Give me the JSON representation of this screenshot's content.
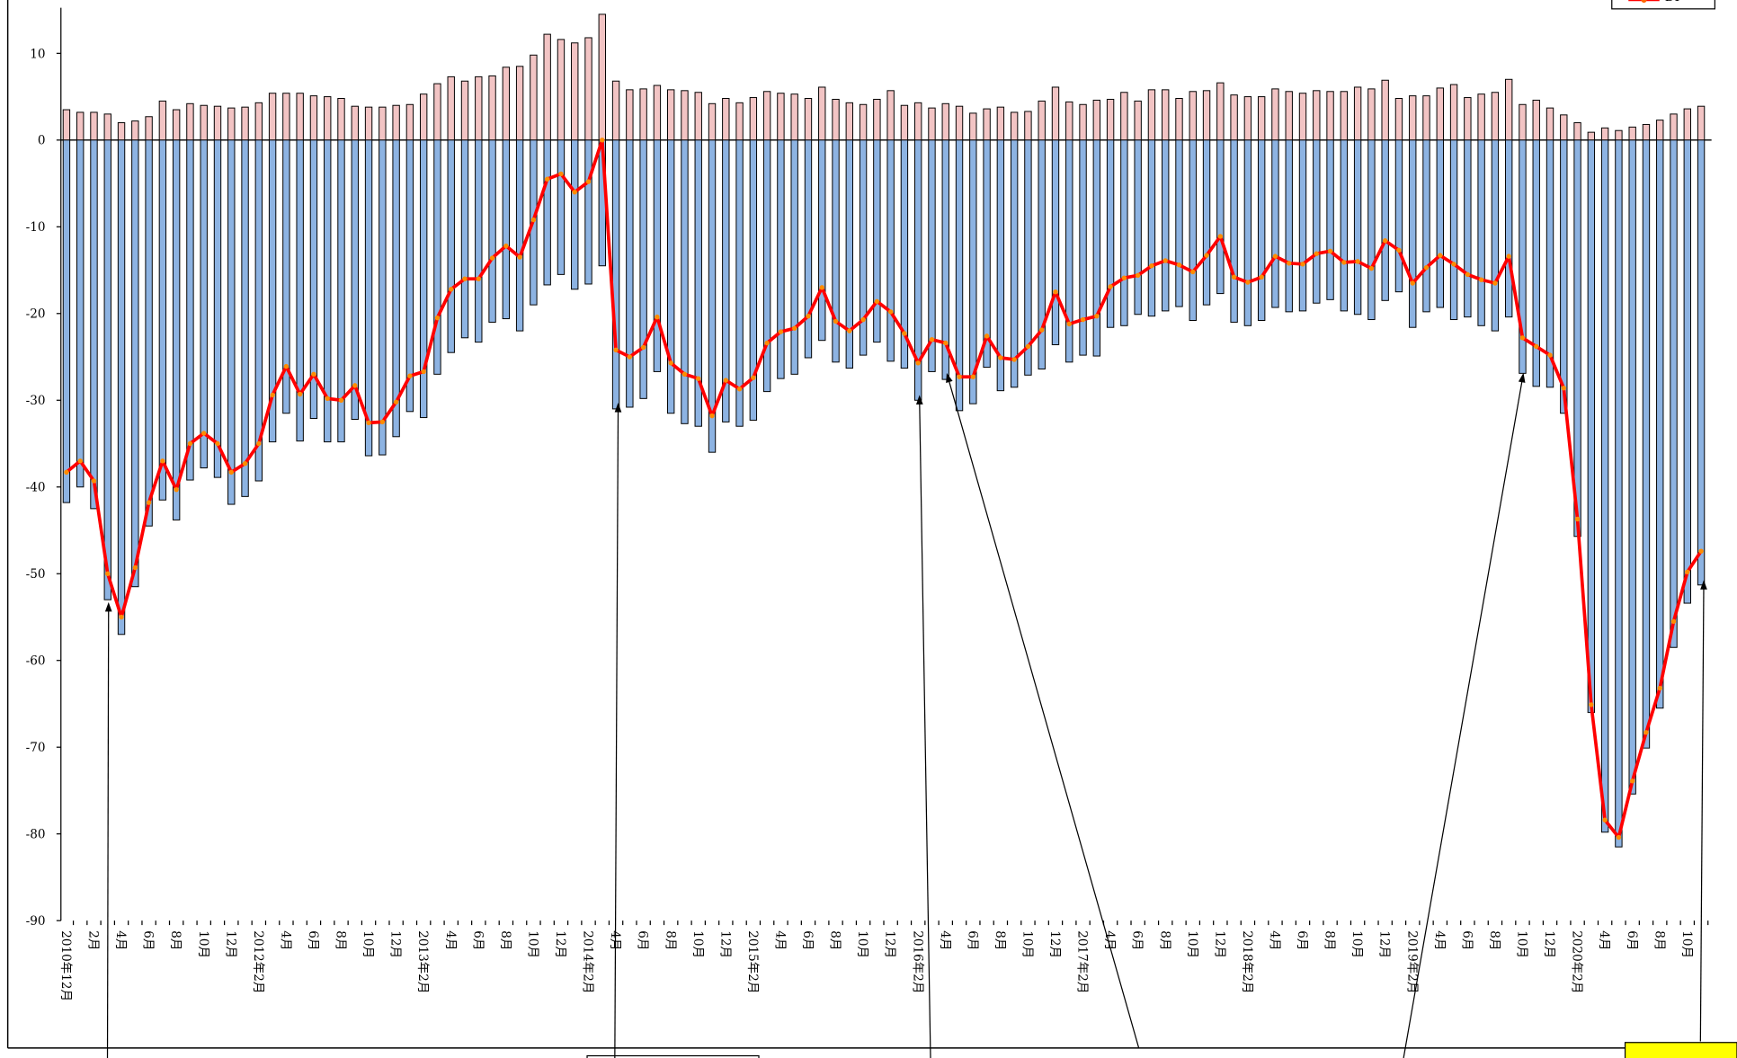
{
  "chart_data": {
    "type": "bar",
    "categories": [
      "2010年12月",
      null,
      "2月",
      null,
      "4月",
      null,
      "6月",
      null,
      "8月",
      null,
      "10月",
      null,
      "12月",
      null,
      "2012年2月",
      null,
      "4月",
      null,
      "6月",
      null,
      "8月",
      null,
      "10月",
      null,
      "12月",
      null,
      "2013年2月",
      null,
      "4月",
      null,
      "6月",
      null,
      "8月",
      null,
      "10月",
      null,
      "12月",
      null,
      "2014年2月",
      null,
      "4月",
      null,
      "6月",
      null,
      "8月",
      null,
      "10月",
      null,
      "12月",
      null,
      "2015年2月",
      null,
      "4月",
      null,
      "6月",
      null,
      "8月",
      null,
      "10月",
      null,
      "12月",
      null,
      "2016年2月",
      null,
      "4月",
      null,
      "6月",
      null,
      "8月",
      null,
      "10月",
      null,
      "12月",
      null,
      "2017年2月",
      null,
      "4月",
      null,
      "6月",
      null,
      "8月",
      null,
      "10月",
      null,
      "12月",
      null,
      "2018年2月",
      null,
      "4月",
      null,
      "6月",
      null,
      "8月",
      null,
      "10月",
      null,
      "12月",
      null,
      "2019年2月",
      null,
      "4月",
      null,
      "6月",
      null,
      "8月",
      null,
      "10月",
      null,
      "12月",
      null,
      "2020年2月",
      null,
      "4月",
      null,
      "6月",
      null,
      "8月",
      null,
      "10月",
      null
    ],
    "series": [
      {
        "type": "bar",
        "color": "#f2c4c4",
        "values": [
          3.5,
          3.2,
          3.2,
          3,
          2,
          2.2,
          2.7,
          4.5,
          3.5,
          4.2,
          4,
          3.9,
          3.7,
          3.8,
          4.3,
          5.4,
          5.4,
          5.4,
          5.1,
          5,
          4.8,
          3.9,
          3.8,
          3.8,
          4,
          4.1,
          5.3,
          6.5,
          7.3,
          6.8,
          7.3,
          7.4,
          8.4,
          8.5,
          9.8,
          12.2,
          11.6,
          11.2,
          11.8,
          14.5,
          6.8,
          5.8,
          5.9,
          6.3,
          5.8,
          5.7,
          5.5,
          4.2,
          4.8,
          4.3,
          4.9,
          5.6,
          5.4,
          5.3,
          4.8,
          6.1,
          4.7,
          4.3,
          4.1,
          4.7,
          5.7,
          4,
          4.3,
          3.7,
          4.2,
          3.9,
          3.1,
          3.6,
          3.8,
          3.2,
          3.3,
          4.5,
          6.1,
          4.4,
          4.1,
          4.6,
          4.7,
          5.5,
          4.5,
          5.8,
          5.8,
          4.8,
          5.6,
          5.7,
          6.6,
          5.2,
          5,
          5,
          5.9,
          5.6,
          5.4,
          5.7,
          5.6,
          5.6,
          6.1,
          5.9,
          6.9,
          4.8,
          5.1,
          5.1,
          6,
          6.4,
          4.9,
          5.3,
          5.5,
          7,
          4.1,
          4.6,
          3.7,
          2.9,
          2,
          0.9,
          1.4,
          1.1,
          1.5,
          1.8,
          2.3,
          3,
          3.6,
          3.9
        ]
      },
      {
        "type": "bar",
        "color": "#8db3e2",
        "values": [
          -41.8,
          -40,
          -42.5,
          -53,
          -57,
          -51.5,
          -44.5,
          -41.5,
          -43.8,
          -39.2,
          -37.8,
          -38.9,
          -42,
          -41.1,
          -39.3,
          -34.8,
          -31.5,
          -34.7,
          -32.1,
          -34.8,
          -34.8,
          -32.2,
          -36.4,
          -36.3,
          -34.2,
          -31.3,
          -32,
          -27,
          -24.5,
          -22.8,
          -23.3,
          -21,
          -20.6,
          -22,
          -19,
          -16.7,
          -15.5,
          -17.2,
          -16.6,
          -14.5,
          -31,
          -30.8,
          -29.8,
          -26.7,
          -31.5,
          -32.7,
          -33,
          -36,
          -32.5,
          -33,
          -32.3,
          -29,
          -27.5,
          -27,
          -25.1,
          -23.1,
          -25.6,
          -26.3,
          -24.8,
          -23.3,
          -25.5,
          -26.3,
          -30,
          -26.7,
          -27.6,
          -31.2,
          -30.4,
          -26.2,
          -28.9,
          -28.5,
          -27.1,
          -26.4,
          -23.6,
          -25.6,
          -24.8,
          -24.9,
          -21.6,
          -21.4,
          -20.1,
          -20.3,
          -19.7,
          -19.2,
          -20.8,
          -19,
          -17.7,
          -21,
          -21.4,
          -20.8,
          -19.3,
          -19.8,
          -19.7,
          -18.8,
          -18.4,
          -19.7,
          -20.1,
          -20.7,
          -18.5,
          -17.5,
          -21.6,
          -19.8,
          -19.3,
          -20.7,
          -20.4,
          -21.4,
          -22,
          -20.4,
          -26.9,
          -28.4,
          -28.5,
          -31.5,
          -45.7,
          -66,
          -79.8,
          -81.5,
          -75.4,
          -70.1,
          -65.5,
          -58.5,
          -53.4,
          -51.3
        ]
      },
      {
        "type": "line",
        "name": "DI",
        "color": "#ff0000",
        "values": [
          -38.3,
          -37,
          -39.3,
          -50,
          -55,
          -49.3,
          -41.8,
          -37,
          -40.3,
          -35,
          -33.8,
          -35,
          -38.3,
          -37.3,
          -35,
          -29.4,
          -26.1,
          -29.3,
          -27,
          -29.8,
          -30,
          -28.3,
          -32.6,
          -32.5,
          -30.2,
          -27.2,
          -26.7,
          -20.5,
          -17.2,
          -16,
          -16,
          -13.6,
          -12.2,
          -13.5,
          -9.2,
          -4.5,
          -3.9,
          -6,
          -4.8,
          0,
          -24.2,
          -25,
          -23.9,
          -20.4,
          -25.7,
          -27,
          -27.5,
          -31.8,
          -27.7,
          -28.7,
          -27.4,
          -23.4,
          -22.1,
          -21.7,
          -20.3,
          -17,
          -20.9,
          -22,
          -20.7,
          -18.6,
          -19.8,
          -22.3,
          -25.7,
          -23,
          -23.4,
          -27.3,
          -27.3,
          -22.6,
          -25.1,
          -25.3,
          -23.8,
          -21.9,
          -17.5,
          -21.2,
          -20.7,
          -20.3,
          -16.9,
          -15.9,
          -15.6,
          -14.5,
          -13.9,
          -14.4,
          -15.2,
          -13.3,
          -11.1,
          -15.8,
          -16.4,
          -15.8,
          -13.4,
          -14.2,
          -14.3,
          -13.1,
          -12.8,
          -14.1,
          -14,
          -14.8,
          -11.6,
          -12.7,
          -16.5,
          -14.7,
          -13.3,
          -14.3,
          -15.5,
          -16.1,
          -16.5,
          -13.4,
          -22.8,
          -23.8,
          -24.8,
          -28.6,
          -43.7,
          -65.1,
          -78.4,
          -80.4,
          -73.9,
          -68.3,
          -63.2,
          -55.5,
          -49.8,
          -47.4
        ]
      }
    ],
    "ylim": [
      -90,
      15
    ],
    "yticks": [
      -90,
      -80,
      -70,
      -60,
      -50,
      -40,
      -30,
      -20,
      -10,
      0,
      10
    ]
  }
}
